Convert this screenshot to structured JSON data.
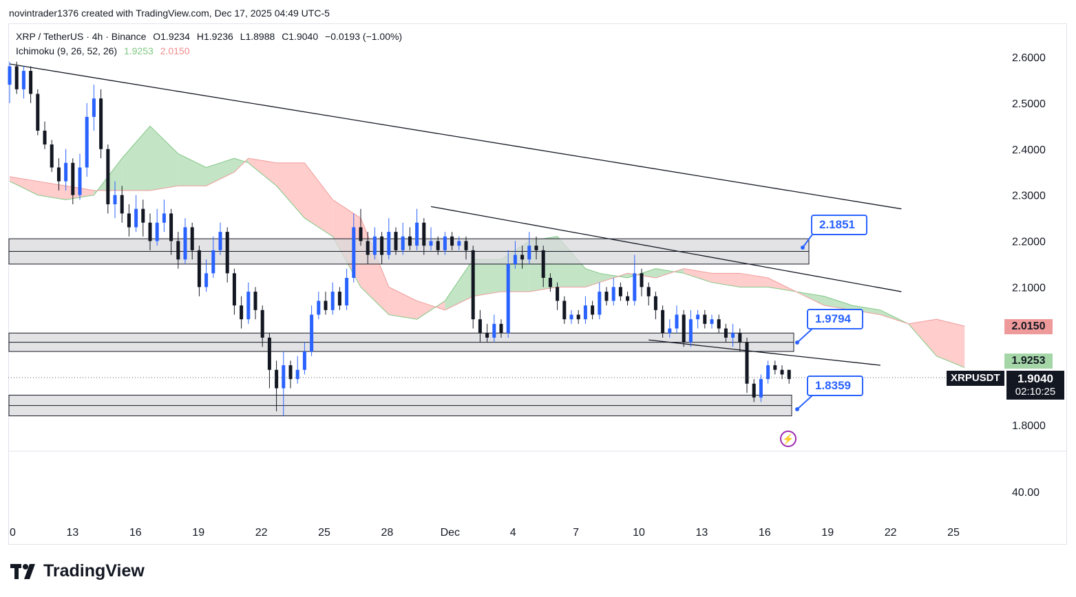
{
  "caption": "novintrader1376 created with TradingView.com, Dec 17, 2025 04:49 UTC-5",
  "legend": {
    "symbol": "XRP / TetherUS · 4h · Binance",
    "open": "O1.9234",
    "high": "H1.9236",
    "low": "L1.8988",
    "close": "C1.9040",
    "change": "−0.0193 (−1.00%)",
    "indicator": "Ichimoku (9, 26, 52, 26)",
    "ind_val1": "1.9253",
    "ind_val2": "2.0150"
  },
  "callouts": [
    "2.1851",
    "1.9794",
    "1.8359"
  ],
  "price_tags": {
    "red": "2.0150",
    "green": "1.9253",
    "symbol": "XRPUSDT",
    "last": "1.9040",
    "countdown": "02:10:25"
  },
  "colors": {
    "up": "#2962ff",
    "down": "#131722",
    "cloud_bull": "#a5d6a7",
    "cloud_bear": "#ffb3b0",
    "zone_fill": "#d9d9dc",
    "accent": "#2962ff",
    "tag_red": "#ef9a9a",
    "tag_green": "#a5d6a7"
  },
  "brand": "TradingView",
  "chart_data": {
    "type": "candlestick",
    "title": "XRP / TetherUS · 4h · Binance",
    "y_ticks": [
      "2.6000",
      "2.5000",
      "2.4000",
      "2.3000",
      "2.2000",
      "2.1000",
      "1.8000"
    ],
    "ylim": [
      1.76,
      2.63
    ],
    "x_ticks": [
      "0",
      "13",
      "16",
      "19",
      "22",
      "25",
      "28",
      "Dec",
      "4",
      "7",
      "10",
      "13",
      "16",
      "19",
      "22",
      "25"
    ],
    "subpane_tick": "40.00",
    "zones": [
      {
        "name": "resistance",
        "low": 2.15,
        "high": 2.205
      },
      {
        "name": "middle-support",
        "low": 1.96,
        "high": 2.0
      },
      {
        "name": "lower-support",
        "low": 1.82,
        "high": 1.865
      }
    ],
    "trendlines": [
      {
        "name": "upper-trendline",
        "from": [
          0,
          2.585
        ],
        "to": [
          127,
          2.27
        ]
      },
      {
        "name": "middle-trendline",
        "from": [
          60,
          2.275
        ],
        "to": [
          127,
          2.09
        ]
      },
      {
        "name": "lower-trendline",
        "from": [
          91,
          1.985
        ],
        "to": [
          124,
          1.93
        ]
      }
    ],
    "kumo": [
      [
        0,
        2.33,
        2.34
      ],
      [
        4,
        2.3,
        2.33
      ],
      [
        8,
        2.29,
        2.32
      ],
      [
        12,
        2.3,
        2.31
      ],
      [
        16,
        2.38,
        2.31
      ],
      [
        20,
        2.45,
        2.31
      ],
      [
        24,
        2.39,
        2.32
      ],
      [
        28,
        2.36,
        2.32
      ],
      [
        32,
        2.38,
        2.35
      ],
      [
        34,
        2.37,
        2.38
      ],
      [
        38,
        2.32,
        2.37
      ],
      [
        42,
        2.25,
        2.37
      ],
      [
        46,
        2.21,
        2.29
      ],
      [
        50,
        2.1,
        2.25
      ],
      [
        54,
        2.04,
        2.1
      ],
      [
        58,
        2.03,
        2.07
      ],
      [
        62,
        2.07,
        2.05
      ],
      [
        66,
        2.16,
        2.08
      ],
      [
        70,
        2.16,
        2.09
      ],
      [
        74,
        2.2,
        2.09
      ],
      [
        78,
        2.21,
        2.1
      ],
      [
        82,
        2.14,
        2.1
      ],
      [
        84,
        2.13,
        2.11
      ],
      [
        88,
        2.12,
        2.13
      ],
      [
        92,
        2.14,
        2.12
      ],
      [
        96,
        2.13,
        2.14
      ],
      [
        100,
        2.11,
        2.13
      ],
      [
        104,
        2.1,
        2.13
      ],
      [
        108,
        2.1,
        2.12
      ],
      [
        112,
        2.09,
        2.09
      ],
      [
        116,
        2.08,
        2.06
      ],
      [
        120,
        2.06,
        2.05
      ],
      [
        124,
        2.05,
        2.04
      ],
      [
        128,
        2.02,
        2.02
      ],
      [
        132,
        1.95,
        2.03
      ],
      [
        136,
        1.925,
        2.015
      ]
    ],
    "candles": [
      [
        0,
        2.54,
        2.58,
        2.59,
        2.5
      ],
      [
        1,
        2.58,
        2.53,
        2.59,
        2.52
      ],
      [
        2,
        2.53,
        2.57,
        2.58,
        2.51
      ],
      [
        3,
        2.57,
        2.52,
        2.58,
        2.5
      ],
      [
        4,
        2.52,
        2.44,
        2.53,
        2.43
      ],
      [
        5,
        2.44,
        2.41,
        2.46,
        2.4
      ],
      [
        6,
        2.41,
        2.36,
        2.42,
        2.35
      ],
      [
        7,
        2.36,
        2.33,
        2.38,
        2.31
      ],
      [
        8,
        2.33,
        2.37,
        2.4,
        2.31
      ],
      [
        9,
        2.37,
        2.3,
        2.38,
        2.28
      ],
      [
        10,
        2.3,
        2.36,
        2.39,
        2.29
      ],
      [
        11,
        2.36,
        2.47,
        2.5,
        2.34
      ],
      [
        12,
        2.47,
        2.51,
        2.54,
        2.44
      ],
      [
        13,
        2.51,
        2.4,
        2.53,
        2.38
      ],
      [
        14,
        2.4,
        2.28,
        2.41,
        2.26
      ],
      [
        15,
        2.28,
        2.3,
        2.33,
        2.25
      ],
      [
        16,
        2.3,
        2.26,
        2.32,
        2.24
      ],
      [
        17,
        2.26,
        2.23,
        2.28,
        2.21
      ],
      [
        18,
        2.23,
        2.27,
        2.3,
        2.22
      ],
      [
        19,
        2.27,
        2.24,
        2.29,
        2.21
      ],
      [
        20,
        2.24,
        2.2,
        2.26,
        2.18
      ],
      [
        21,
        2.2,
        2.24,
        2.27,
        2.19
      ],
      [
        22,
        2.24,
        2.26,
        2.29,
        2.22
      ],
      [
        23,
        2.26,
        2.2,
        2.27,
        2.17
      ],
      [
        24,
        2.2,
        2.16,
        2.22,
        2.14
      ],
      [
        25,
        2.16,
        2.23,
        2.25,
        2.15
      ],
      [
        26,
        2.23,
        2.18,
        2.24,
        2.16
      ],
      [
        27,
        2.18,
        2.1,
        2.19,
        2.08
      ],
      [
        28,
        2.1,
        2.13,
        2.16,
        2.09
      ],
      [
        29,
        2.13,
        2.18,
        2.21,
        2.12
      ],
      [
        30,
        2.18,
        2.22,
        2.24,
        2.17
      ],
      [
        31,
        2.22,
        2.13,
        2.23,
        2.11
      ],
      [
        32,
        2.13,
        2.06,
        2.14,
        2.04
      ],
      [
        33,
        2.06,
        2.03,
        2.08,
        2.01
      ],
      [
        34,
        2.03,
        2.09,
        2.11,
        2.02
      ],
      [
        35,
        2.09,
        2.05,
        2.1,
        2.03
      ],
      [
        36,
        2.05,
        1.99,
        2.06,
        1.97
      ],
      [
        37,
        1.99,
        1.92,
        2.0,
        1.88
      ],
      [
        38,
        1.92,
        1.88,
        1.94,
        1.83
      ],
      [
        39,
        1.88,
        1.93,
        1.96,
        1.82
      ],
      [
        40,
        1.93,
        1.9,
        1.94,
        1.88
      ],
      [
        41,
        1.9,
        1.92,
        1.95,
        1.89
      ],
      [
        42,
        1.92,
        1.96,
        1.98,
        1.91
      ],
      [
        43,
        1.96,
        2.04,
        2.06,
        1.95
      ],
      [
        44,
        2.04,
        2.07,
        2.09,
        2.03
      ],
      [
        45,
        2.07,
        2.05,
        2.09,
        2.04
      ],
      [
        46,
        2.05,
        2.09,
        2.11,
        2.04
      ],
      [
        47,
        2.09,
        2.06,
        2.1,
        2.05
      ],
      [
        48,
        2.06,
        2.12,
        2.14,
        2.05
      ],
      [
        49,
        2.12,
        2.23,
        2.26,
        2.11
      ],
      [
        50,
        2.23,
        2.2,
        2.27,
        2.19
      ],
      [
        51,
        2.2,
        2.17,
        2.22,
        2.15
      ],
      [
        52,
        2.17,
        2.21,
        2.23,
        2.16
      ],
      [
        53,
        2.21,
        2.17,
        2.22,
        2.15
      ],
      [
        54,
        2.17,
        2.22,
        2.25,
        2.16
      ],
      [
        55,
        2.22,
        2.18,
        2.23,
        2.17
      ],
      [
        56,
        2.18,
        2.21,
        2.24,
        2.17
      ],
      [
        57,
        2.21,
        2.19,
        2.23,
        2.18
      ],
      [
        58,
        2.19,
        2.24,
        2.27,
        2.18
      ],
      [
        59,
        2.24,
        2.19,
        2.25,
        2.17
      ],
      [
        60,
        2.19,
        2.2,
        2.23,
        2.18
      ],
      [
        61,
        2.2,
        2.18,
        2.21,
        2.17
      ],
      [
        62,
        2.18,
        2.21,
        2.22,
        2.17
      ],
      [
        63,
        2.21,
        2.19,
        2.22,
        2.18
      ],
      [
        64,
        2.19,
        2.2,
        2.21,
        2.18
      ],
      [
        65,
        2.2,
        2.18,
        2.21,
        2.16
      ],
      [
        66,
        2.18,
        2.03,
        2.19,
        2.01
      ],
      [
        67,
        2.03,
        2.0,
        2.05,
        1.98
      ],
      [
        68,
        2.0,
        1.99,
        2.02,
        1.98
      ],
      [
        69,
        1.99,
        2.02,
        2.04,
        1.98
      ],
      [
        70,
        2.02,
        2.0,
        2.03,
        1.99
      ],
      [
        71,
        2.0,
        2.15,
        2.18,
        1.99
      ],
      [
        72,
        2.15,
        2.17,
        2.2,
        2.14
      ],
      [
        73,
        2.17,
        2.16,
        2.19,
        2.14
      ],
      [
        74,
        2.16,
        2.19,
        2.22,
        2.15
      ],
      [
        75,
        2.19,
        2.18,
        2.21,
        2.16
      ],
      [
        76,
        2.18,
        2.12,
        2.19,
        2.1
      ],
      [
        77,
        2.12,
        2.1,
        2.13,
        2.09
      ],
      [
        78,
        2.1,
        2.07,
        2.11,
        2.05
      ],
      [
        79,
        2.07,
        2.03,
        2.08,
        2.02
      ],
      [
        80,
        2.03,
        2.04,
        2.05,
        2.02
      ],
      [
        81,
        2.04,
        2.03,
        2.05,
        2.02
      ],
      [
        82,
        2.03,
        2.06,
        2.08,
        2.02
      ],
      [
        83,
        2.06,
        2.04,
        2.07,
        2.03
      ],
      [
        84,
        2.04,
        2.09,
        2.11,
        2.03
      ],
      [
        85,
        2.09,
        2.07,
        2.1,
        2.06
      ],
      [
        86,
        2.07,
        2.1,
        2.12,
        2.06
      ],
      [
        87,
        2.1,
        2.08,
        2.11,
        2.07
      ],
      [
        88,
        2.08,
        2.07,
        2.09,
        2.06
      ],
      [
        89,
        2.07,
        2.13,
        2.17,
        2.06
      ],
      [
        90,
        2.13,
        2.1,
        2.14,
        2.08
      ],
      [
        91,
        2.1,
        2.08,
        2.11,
        2.06
      ],
      [
        92,
        2.08,
        2.05,
        2.09,
        2.03
      ],
      [
        93,
        2.05,
        2.0,
        2.06,
        1.99
      ],
      [
        94,
        2.0,
        2.01,
        2.03,
        1.99
      ],
      [
        95,
        2.01,
        2.04,
        2.06,
        2.0
      ],
      [
        96,
        2.04,
        1.98,
        2.05,
        1.97
      ],
      [
        97,
        1.98,
        2.03,
        2.05,
        1.97
      ],
      [
        98,
        2.03,
        2.04,
        2.05,
        2.01
      ],
      [
        99,
        2.04,
        2.02,
        2.05,
        2.01
      ],
      [
        100,
        2.02,
        2.03,
        2.04,
        2.01
      ],
      [
        101,
        2.03,
        2.01,
        2.04,
        2.0
      ],
      [
        102,
        2.01,
        1.99,
        2.02,
        1.98
      ],
      [
        103,
        1.99,
        2.0,
        2.02,
        1.97
      ],
      [
        104,
        2.0,
        1.98,
        2.01,
        1.96
      ],
      [
        105,
        1.98,
        1.89,
        1.99,
        1.87
      ],
      [
        106,
        1.89,
        1.86,
        1.9,
        1.85
      ],
      [
        107,
        1.86,
        1.9,
        1.91,
        1.85
      ],
      [
        108,
        1.9,
        1.93,
        1.94,
        1.89
      ],
      [
        109,
        1.93,
        1.92,
        1.94,
        1.91
      ],
      [
        110,
        1.92,
        1.91,
        1.93,
        1.9
      ],
      [
        111,
        1.92,
        1.9,
        1.92,
        1.89
      ]
    ]
  }
}
